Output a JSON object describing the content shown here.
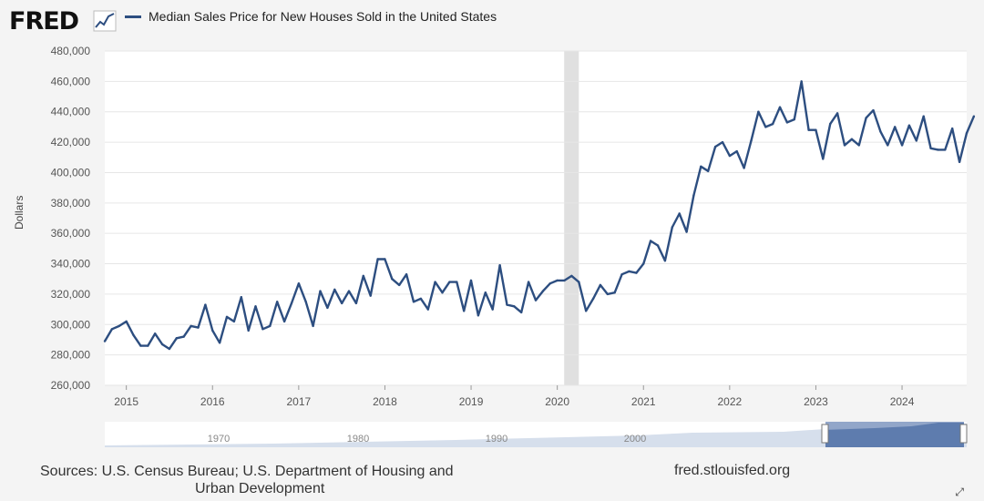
{
  "header": {
    "logo_text": "FRED",
    "logo_icon": "chart-line-icon",
    "legend_label": "Median Sales Price for New Houses Sold in the United States",
    "series_color": "#2d4e80"
  },
  "footer": {
    "sources_line1": "Sources: U.S. Census Bureau; U.S. Department of Housing and",
    "sources_line2": "Urban Development",
    "site": "fred.stlouisfed.org"
  },
  "navigator": {
    "decade_labels": [
      "1970",
      "1980",
      "1990",
      "2000"
    ],
    "range_handles": [
      "left-handle",
      "right-handle"
    ]
  },
  "chart_data": {
    "type": "line",
    "title": "",
    "xlabel": "",
    "ylabel": "Dollars",
    "xlim": [
      2014.75,
      2024.75
    ],
    "ylim": [
      260000,
      480000
    ],
    "y_ticks": [
      260000,
      280000,
      300000,
      320000,
      340000,
      360000,
      380000,
      400000,
      420000,
      440000,
      460000,
      480000
    ],
    "y_tick_labels": [
      "260,000",
      "280,000",
      "300,000",
      "320,000",
      "340,000",
      "360,000",
      "380,000",
      "400,000",
      "420,000",
      "440,000",
      "460,000",
      "480,000"
    ],
    "x_ticks": [
      2015,
      2016,
      2017,
      2018,
      2019,
      2020,
      2021,
      2022,
      2023,
      2024
    ],
    "x_tick_labels": [
      "2015",
      "2016",
      "2017",
      "2018",
      "2019",
      "2020",
      "2021",
      "2022",
      "2023",
      "2024"
    ],
    "grid": true,
    "legend_position": "top-left",
    "recession_shading": [
      {
        "start": 2020.08,
        "end": 2020.25
      }
    ],
    "series": [
      {
        "name": "Median Sales Price for New Houses Sold in the United States",
        "start": "2014-10",
        "frequency": "monthly",
        "values": [
          289000,
          297000,
          299000,
          302000,
          293000,
          286000,
          286000,
          294000,
          287000,
          284000,
          291000,
          292000,
          299000,
          298000,
          313000,
          296000,
          288000,
          305000,
          302000,
          318000,
          296000,
          312000,
          297000,
          299000,
          315000,
          302000,
          314000,
          327000,
          315000,
          299000,
          322000,
          311000,
          323000,
          314000,
          322000,
          314000,
          332000,
          319000,
          343000,
          343000,
          330000,
          326000,
          333000,
          315000,
          317000,
          310000,
          328000,
          321000,
          328000,
          328000,
          309000,
          329000,
          306000,
          321000,
          310000,
          339000,
          313000,
          312000,
          308000,
          328000,
          316000,
          322000,
          327000,
          329000,
          329000,
          332000,
          328000,
          309000,
          317000,
          326000,
          320000,
          321000,
          333000,
          335000,
          334000,
          340000,
          355000,
          352000,
          342000,
          364000,
          373000,
          361000,
          385000,
          404000,
          401000,
          417000,
          420000,
          411000,
          414000,
          403000,
          421000,
          440000,
          430000,
          432000,
          443000,
          433000,
          435000,
          460000,
          428000,
          428000,
          409000,
          432000,
          439000,
          418000,
          422000,
          418000,
          436000,
          441000,
          427000,
          418000,
          430000,
          418000,
          431000,
          421000,
          437000,
          416000,
          415000,
          415000,
          429000,
          407000,
          426000,
          437000
        ]
      }
    ]
  }
}
